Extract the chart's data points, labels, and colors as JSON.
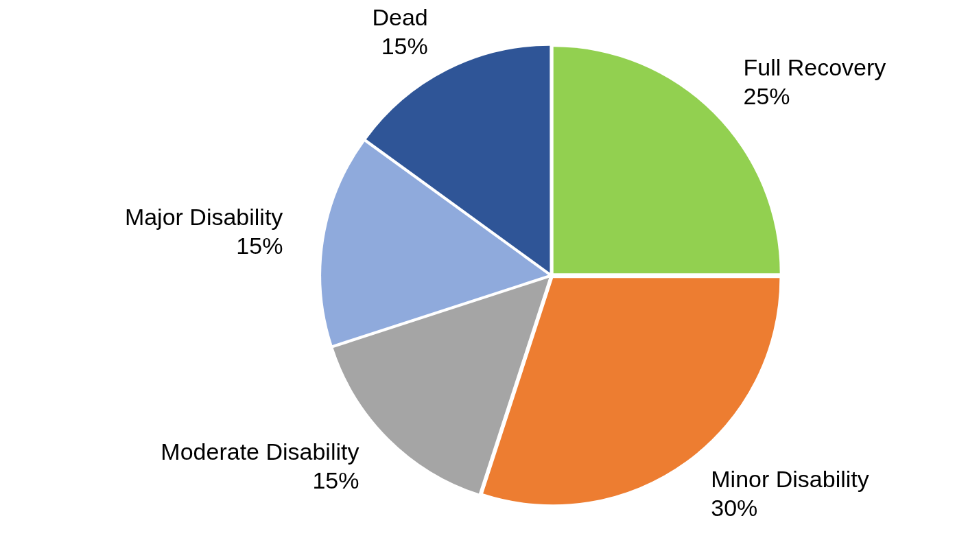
{
  "chart_data": {
    "type": "pie",
    "categories": [
      "Full Recovery",
      "Minor Disability",
      "Moderate Disability",
      "Major Disability",
      "Dead"
    ],
    "values": [
      25,
      30,
      15,
      15,
      15
    ],
    "colors": [
      "#92d050",
      "#ed7d31",
      "#a5a5a5",
      "#8faadc",
      "#2f5597"
    ],
    "value_labels": [
      "25%",
      "30%",
      "15%",
      "15%",
      "15%"
    ],
    "legend": false
  }
}
